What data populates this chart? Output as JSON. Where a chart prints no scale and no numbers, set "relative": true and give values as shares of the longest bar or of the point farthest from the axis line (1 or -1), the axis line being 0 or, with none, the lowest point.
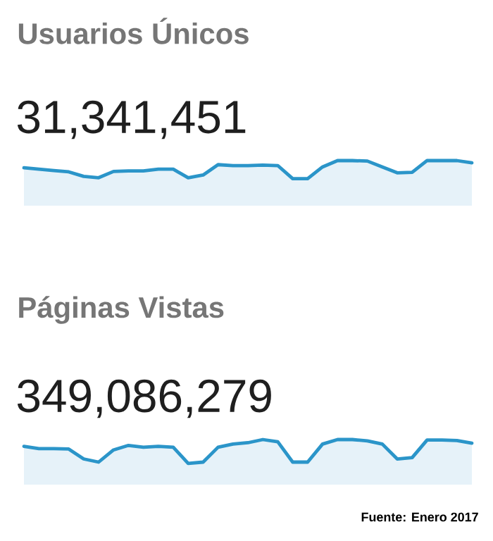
{
  "chart_data": [
    {
      "type": "area",
      "title": "Usuarios Únicos",
      "subtitle": "31,341,451",
      "relative": true,
      "color": "#2b95c9",
      "categories": [
        null,
        null,
        null,
        null,
        null,
        null,
        null,
        null,
        null,
        null,
        null,
        null,
        null,
        null,
        null,
        null,
        null,
        null,
        null,
        null,
        null,
        null,
        null,
        null,
        null,
        null,
        null,
        null,
        null,
        null,
        null
      ],
      "values": [
        0.84,
        0.81,
        0.78,
        0.75,
        0.65,
        0.62,
        0.76,
        0.77,
        0.77,
        0.81,
        0.81,
        0.62,
        0.68,
        0.91,
        0.89,
        0.89,
        0.9,
        0.89,
        0.6,
        0.6,
        0.86,
        1,
        1,
        0.99,
        0.86,
        0.73,
        0.74,
        1,
        1,
        1,
        0.95
      ]
    },
    {
      "type": "area",
      "title": "Páginas  Vistas",
      "subtitle": "349,086,279",
      "relative": true,
      "color": "#2b95c9",
      "categories": [
        null,
        null,
        null,
        null,
        null,
        null,
        null,
        null,
        null,
        null,
        null,
        null,
        null,
        null,
        null,
        null,
        null,
        null,
        null,
        null,
        null,
        null,
        null,
        null,
        null,
        null,
        null,
        null,
        null,
        null,
        null
      ],
      "values": [
        0.85,
        0.8,
        0.8,
        0.79,
        0.57,
        0.5,
        0.77,
        0.87,
        0.83,
        0.85,
        0.83,
        0.47,
        0.5,
        0.83,
        0.9,
        0.93,
        1,
        0.95,
        0.5,
        0.5,
        0.9,
        1,
        1,
        0.97,
        0.9,
        0.57,
        0.6,
        0.99,
        0.99,
        0.98,
        0.92
      ],
      "annotations": [
        "Fuente: Enero 2017"
      ]
    }
  ]
}
